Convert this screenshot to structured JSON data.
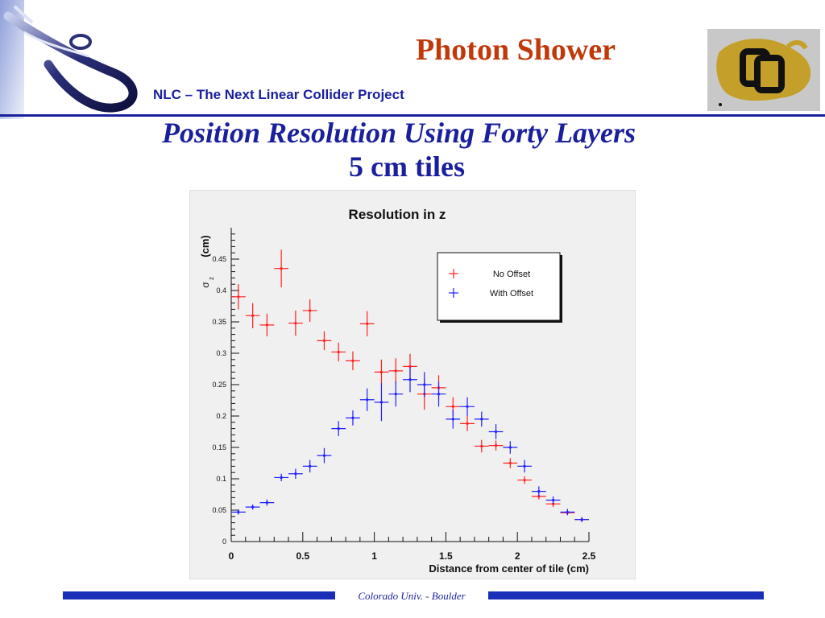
{
  "header": {
    "title": "Photon Shower",
    "subtitle": "NLC – The Next Linear Collider Project"
  },
  "slide": {
    "title": "Position Resolution Using Forty Layers",
    "subtitle": "5 cm tiles"
  },
  "footer": {
    "text": "Colorado Univ. - Boulder"
  },
  "logos": {
    "left": "nlc-logo",
    "right": "cu-buffalo-logo"
  },
  "colors": {
    "header_red": "#c0390b",
    "navy": "#1a1f9c",
    "footer_bar": "#1a2fb8",
    "series_no_offset": "#ff2020",
    "series_with_offset": "#2020ff"
  },
  "chart_data": {
    "type": "scatter",
    "title": "Resolution in z",
    "ylabel": "(cm)",
    "ylabel_symbol": "σ",
    "ylabel_subscript": "z",
    "xlabel": "Distance from center of tile (cm)",
    "xlim": [
      0,
      2.5
    ],
    "ylim": [
      0,
      0.5
    ],
    "x_ticks": [
      "0",
      "0.5",
      "1",
      "1.5",
      "2",
      "2.5"
    ],
    "y_ticks": [
      "0",
      "0.05",
      "0.1",
      "0.15",
      "0.2",
      "0.25",
      "0.3",
      "0.35",
      "0.4",
      "0.45"
    ],
    "x_tick_values": [
      0,
      0.5,
      1,
      1.5,
      2,
      2.5
    ],
    "y_tick_values": [
      0,
      0.05,
      0.1,
      0.15,
      0.2,
      0.25,
      0.3,
      0.35,
      0.4,
      0.45
    ],
    "grid": false,
    "legend_position": "top-right",
    "series": [
      {
        "name": "No Offset",
        "color": "#ff2020",
        "x": [
          0.05,
          0.15,
          0.25,
          0.35,
          0.45,
          0.55,
          0.65,
          0.75,
          0.85,
          0.95,
          1.05,
          1.15,
          1.25,
          1.35,
          1.45,
          1.55,
          1.65,
          1.75,
          1.85,
          1.95,
          2.05,
          2.15,
          2.25,
          2.35,
          2.45
        ],
        "y": [
          0.39,
          0.36,
          0.345,
          0.435,
          0.348,
          0.368,
          0.32,
          0.302,
          0.288,
          0.347,
          0.27,
          0.272,
          0.279,
          0.235,
          0.245,
          0.215,
          0.188,
          0.152,
          0.153,
          0.125,
          0.098,
          0.072,
          0.06,
          0.046,
          0.035
        ],
        "yerr": [
          0.02,
          0.02,
          0.018,
          0.03,
          0.02,
          0.018,
          0.015,
          0.015,
          0.015,
          0.02,
          0.02,
          0.02,
          0.02,
          0.025,
          0.02,
          0.015,
          0.012,
          0.01,
          0.008,
          0.008,
          0.006,
          0.005,
          0.005,
          0.004,
          0.003
        ]
      },
      {
        "name": "With Offset",
        "color": "#2020ff",
        "x": [
          0.05,
          0.15,
          0.25,
          0.35,
          0.45,
          0.55,
          0.65,
          0.75,
          0.85,
          0.95,
          1.05,
          1.15,
          1.25,
          1.35,
          1.45,
          1.55,
          1.65,
          1.75,
          1.85,
          1.95,
          2.05,
          2.15,
          2.25,
          2.35,
          2.45
        ],
        "y": [
          0.047,
          0.055,
          0.062,
          0.102,
          0.108,
          0.12,
          0.137,
          0.18,
          0.197,
          0.226,
          0.222,
          0.235,
          0.258,
          0.25,
          0.235,
          0.195,
          0.215,
          0.195,
          0.175,
          0.15,
          0.12,
          0.08,
          0.066,
          0.047,
          0.035
        ],
        "yerr": [
          0.004,
          0.004,
          0.005,
          0.006,
          0.008,
          0.01,
          0.012,
          0.012,
          0.012,
          0.018,
          0.03,
          0.02,
          0.02,
          0.02,
          0.02,
          0.015,
          0.015,
          0.012,
          0.012,
          0.01,
          0.01,
          0.008,
          0.006,
          0.005,
          0.004
        ]
      }
    ]
  }
}
